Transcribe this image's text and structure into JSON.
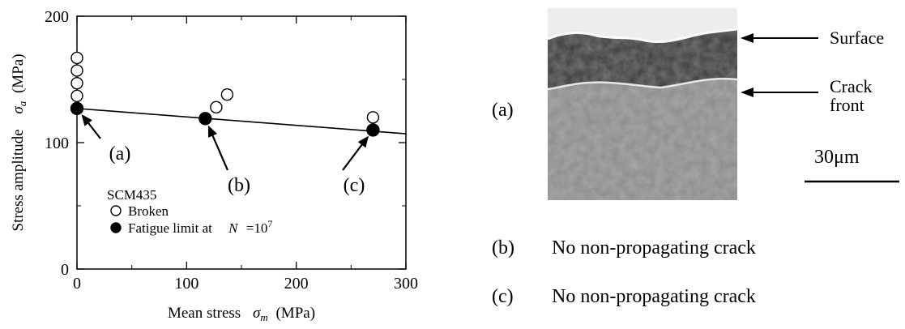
{
  "chart_data": {
    "type": "scatter",
    "xlabel": "Mean stress",
    "xlabel_symbol": "σ",
    "xlabel_sub": "m",
    "xlabel_unit": "(MPa)",
    "ylabel": "Stress amplitude",
    "ylabel_symbol": "σ",
    "ylabel_sub": "a",
    "ylabel_unit": "(MPa)",
    "xlim": [
      0,
      300
    ],
    "ylim": [
      0,
      200
    ],
    "xticks": [
      "0",
      "100",
      "200",
      "300"
    ],
    "yticks": [
      "0",
      "100",
      "200"
    ],
    "legend": {
      "material": "SCM435",
      "broken_label": "Broken",
      "fatigue_label": "Fatigue limit at",
      "n_symbol": "N",
      "n_value": "=10",
      "n_exp": "7"
    },
    "series": [
      {
        "name": "Broken",
        "marker": "open-circle",
        "points": [
          [
            0,
            137
          ],
          [
            0,
            147
          ],
          [
            0,
            157
          ],
          [
            0,
            167
          ],
          [
            127,
            128
          ],
          [
            137,
            138
          ],
          [
            270,
            120
          ]
        ]
      },
      {
        "name": "Fatigue limit at N =10^7",
        "marker": "filled-circle",
        "points": [
          [
            0,
            127
          ],
          [
            117,
            119
          ],
          [
            270,
            110
          ]
        ]
      }
    ],
    "fit_line": [
      [
        0,
        127
      ],
      [
        300,
        107
      ]
    ],
    "annotations": [
      {
        "label": "(a)",
        "points_to": [
          0,
          127
        ]
      },
      {
        "label": "(b)",
        "points_to": [
          117,
          119
        ]
      },
      {
        "label": "(c)",
        "points_to": [
          270,
          110
        ]
      }
    ]
  },
  "micrograph": {
    "panel_label": "(a)",
    "surface_label": "Surface",
    "crack_label_line1": "Crack",
    "crack_label_line2": "front",
    "scale_label": "30μm"
  },
  "captions": {
    "b_label": "(b)",
    "b_text": "No non-propagating crack",
    "c_label": "(c)",
    "c_text": "No non-propagating crack"
  }
}
